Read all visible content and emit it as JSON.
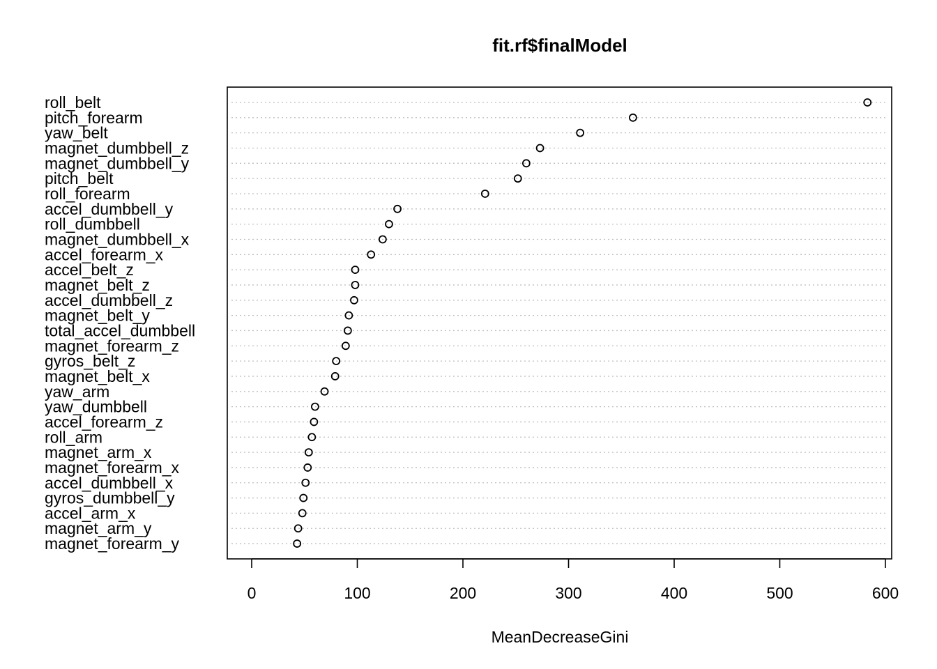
{
  "chart_data": {
    "type": "scatter",
    "title": "fit.rf$finalModel",
    "xlabel": "MeanDecreaseGini",
    "ylabel": "",
    "xlim": [
      0,
      600
    ],
    "xticks": [
      0,
      100,
      200,
      300,
      400,
      500,
      600
    ],
    "grid": "dotted horizontal guide per category",
    "categories": [
      "roll_belt",
      "pitch_forearm",
      "yaw_belt",
      "magnet_dumbbell_z",
      "magnet_dumbbell_y",
      "pitch_belt",
      "roll_forearm",
      "accel_dumbbell_y",
      "roll_dumbbell",
      "magnet_dumbbell_x",
      "accel_forearm_x",
      "accel_belt_z",
      "magnet_belt_z",
      "accel_dumbbell_z",
      "magnet_belt_y",
      "total_accel_dumbbell",
      "magnet_forearm_z",
      "gyros_belt_z",
      "magnet_belt_x",
      "yaw_arm",
      "yaw_dumbbell",
      "accel_forearm_z",
      "roll_arm",
      "magnet_arm_x",
      "magnet_forearm_x",
      "accel_dumbbell_x",
      "gyros_dumbbell_y",
      "accel_arm_x",
      "magnet_arm_y",
      "magnet_forearm_y"
    ],
    "values": [
      583,
      361,
      311,
      273,
      260,
      252,
      221,
      138,
      130,
      124,
      113,
      98,
      98,
      97,
      92,
      91,
      89,
      80,
      79,
      69,
      60,
      59,
      57,
      54,
      53,
      51,
      49,
      48,
      44,
      43
    ]
  }
}
